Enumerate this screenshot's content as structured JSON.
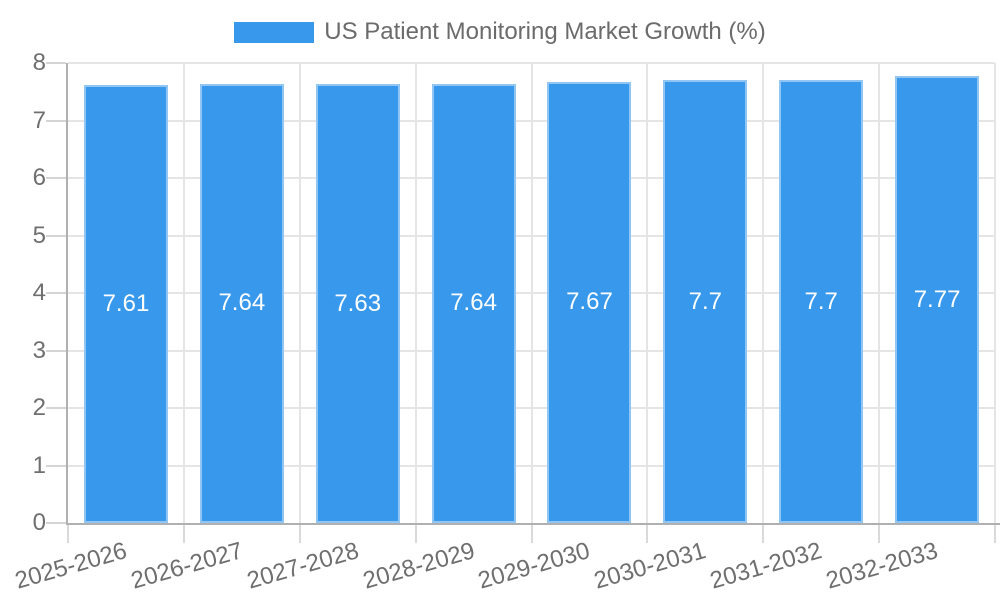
{
  "legend": {
    "label": "US Patient Monitoring Market Growth (%)"
  },
  "colors": {
    "bar": "#3898EC",
    "bar_border": "rgba(255,255,255,0.45)",
    "grid": "#E5E5E5",
    "axis_line": "#B0B0B0",
    "tick": "#D5D5D5",
    "axis_text": "#6F6F6F",
    "legend_text": "#6b6b6b",
    "value_text": "#FFFFFF",
    "background": "#FFFFFF"
  },
  "chart_data": {
    "type": "bar",
    "title": "US Patient Monitoring Market Growth (%)",
    "categories": [
      "2025-2026",
      "2026-2027",
      "2027-2028",
      "2028-2029",
      "2029-2030",
      "2030-2031",
      "2031-2032",
      "2032-2033"
    ],
    "values": [
      7.61,
      7.64,
      7.63,
      7.64,
      7.67,
      7.7,
      7.7,
      7.77
    ],
    "value_labels": [
      "7.61",
      "7.64",
      "7.63",
      "7.64",
      "7.67",
      "7.7",
      "7.7",
      "7.77"
    ],
    "xlabel": "",
    "ylabel": "",
    "ylim": [
      0,
      8
    ],
    "yticks": [
      0,
      1,
      2,
      3,
      4,
      5,
      6,
      7,
      8
    ],
    "grid": true,
    "legend_position": "top",
    "value_label_position": "center",
    "x_label_rotation_deg": -16
  }
}
